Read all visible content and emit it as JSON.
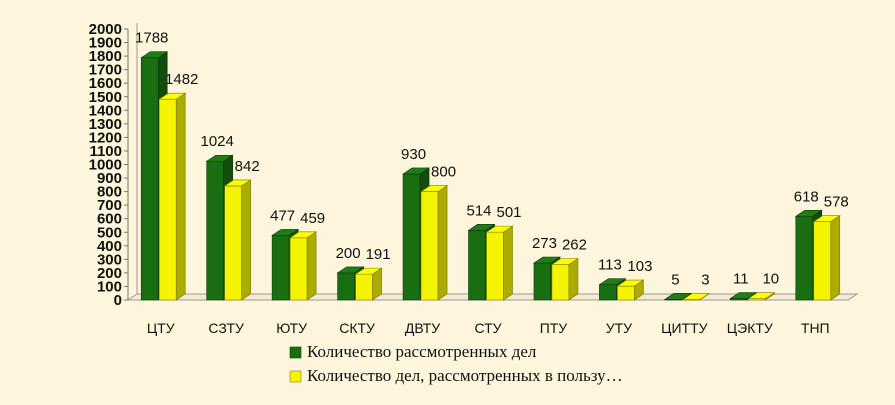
{
  "chart_data": {
    "type": "bar",
    "categories": [
      "ЦТУ",
      "СЗТУ",
      "ЮТУ",
      "СКТУ",
      "ДВТУ",
      "СТУ",
      "ПТУ",
      "УТУ",
      "ЦИТТУ",
      "ЦЭКТУ",
      "ТНП"
    ],
    "series": [
      {
        "name": "Количество рассмотренных дел",
        "color": "#1a6e12",
        "values": [
          1788,
          1024,
          477,
          200,
          930,
          514,
          273,
          113,
          5,
          11,
          618
        ]
      },
      {
        "name": "Количество дел, рассмотренных в пользу…",
        "color": "#f4f400",
        "values": [
          1482,
          842,
          459,
          191,
          800,
          501,
          262,
          103,
          3,
          10,
          578
        ]
      }
    ],
    "ylim": [
      0,
      2000
    ],
    "yticks": [
      0,
      100,
      200,
      300,
      400,
      500,
      600,
      700,
      800,
      900,
      1000,
      1100,
      1200,
      1300,
      1400,
      1500,
      1600,
      1700,
      1800,
      1900,
      2000
    ],
    "legend_position": "bottom",
    "grid": false,
    "chart_style": "3d-bar"
  }
}
